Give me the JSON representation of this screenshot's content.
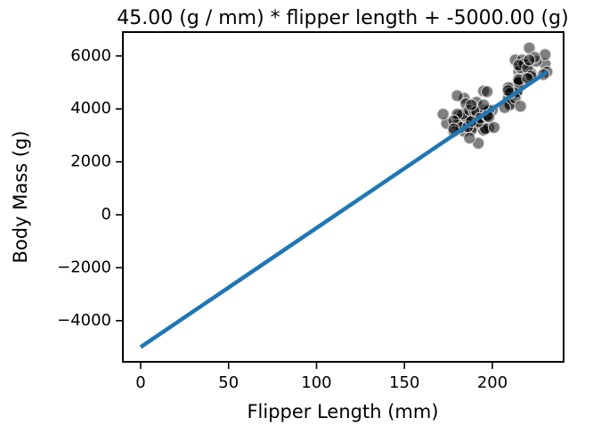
{
  "chart_data": {
    "type": "scatter",
    "title": "45.00 (g / mm) * flipper length + -5000.00 (g)",
    "x_label": "Flipper Length (mm)",
    "y_label": "Body Mass (g)",
    "xlim": [
      -10.1,
      240.5
    ],
    "ylim": [
      -5556,
      6902
    ],
    "xticks": [
      0,
      50,
      100,
      150,
      200
    ],
    "yticks": [
      {
        "value": -4000,
        "label": "−4000"
      },
      {
        "value": -2000,
        "label": "−2000"
      },
      0,
      2000,
      4000,
      6000
    ],
    "series": [
      {
        "type": "scatter",
        "color": "#000000",
        "x": [
          181,
          186,
          195,
          193,
          190,
          181,
          195,
          182,
          191,
          198,
          185,
          195,
          197,
          184,
          194,
          174,
          180,
          189,
          185,
          180,
          187,
          183,
          187,
          172,
          180,
          178,
          188,
          184,
          195,
          196,
          190,
          182,
          191,
          186,
          188,
          200,
          192,
          201,
          197,
          178,
          192,
          196,
          193,
          188,
          197,
          198,
          178,
          197,
          195,
          198,
          192,
          187,
          211,
          230,
          210,
          218,
          215,
          210,
          211,
          219,
          209,
          215,
          214,
          216,
          214,
          213,
          210,
          217,
          210,
          221,
          209,
          222,
          218,
          215,
          213,
          215,
          215,
          215,
          216,
          215,
          210,
          220,
          222,
          209,
          207,
          230,
          220,
          231,
          229,
          225,
          224,
          221
        ],
        "values": [
          3750,
          3800,
          3250,
          3450,
          3650,
          3625,
          4675,
          3475,
          4250,
          3300,
          3700,
          3200,
          3800,
          4400,
          3700,
          3450,
          4500,
          3325,
          4200,
          3400,
          3600,
          3800,
          3950,
          3800,
          3800,
          3550,
          3200,
          3150,
          3950,
          3250,
          3900,
          3300,
          3900,
          3325,
          4150,
          3950,
          3550,
          3300,
          4650,
          3150,
          3500,
          3900,
          3650,
          3525,
          3725,
          3950,
          3250,
          3750,
          4150,
          3700,
          2700,
          2900,
          4500,
          5700,
          4450,
          5700,
          5400,
          4550,
          4800,
          5200,
          4400,
          5150,
          4650,
          5550,
          4650,
          5850,
          4200,
          5850,
          4150,
          6300,
          4800,
          5350,
          5700,
          5000,
          4400,
          5050,
          5000,
          5100,
          4100,
          5650,
          4600,
          5550,
          5250,
          4700,
          4050,
          6050,
          5150,
          5400,
          5300,
          5800,
          5950,
          5850
        ]
      },
      {
        "type": "line",
        "color": "#1f77b4",
        "x": [
          0,
          231
        ],
        "values": [
          -5000,
          5395
        ]
      }
    ]
  }
}
